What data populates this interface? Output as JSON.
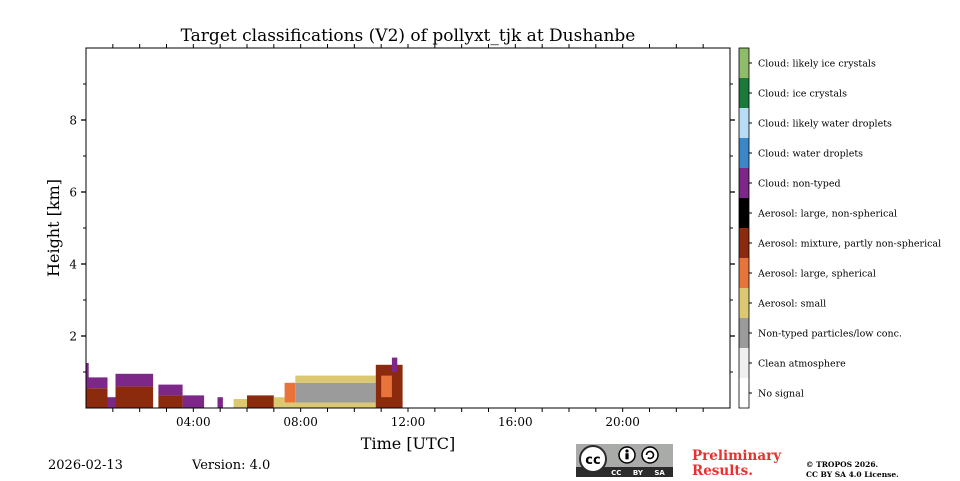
{
  "chart_data": {
    "type": "heatmap",
    "title": "Target classifications (V2) of pollyxt_tjk at Dushanbe",
    "xlabel": "Time [UTC]",
    "ylabel": "Height [km]",
    "xlim_hours": [
      0,
      24
    ],
    "ylim_km": [
      0,
      10
    ],
    "x_ticks": [
      {
        "hour": 4,
        "label": "04:00"
      },
      {
        "hour": 8,
        "label": "08:00"
      },
      {
        "hour": 12,
        "label": "12:00"
      },
      {
        "hour": 16,
        "label": "16:00"
      },
      {
        "hour": 20,
        "label": "20:00"
      }
    ],
    "y_ticks": [
      {
        "km": 2,
        "label": "2"
      },
      {
        "km": 4,
        "label": "4"
      },
      {
        "km": 6,
        "label": "6"
      },
      {
        "km": 8,
        "label": "8"
      }
    ],
    "legend": [
      {
        "label": "Cloud: likely ice crystals",
        "color": "#8fbc6a"
      },
      {
        "label": "Cloud: ice crystals",
        "color": "#1a7a3a"
      },
      {
        "label": "Cloud: likely water droplets",
        "color": "#b7dcf5"
      },
      {
        "label": "Cloud: water droplets",
        "color": "#3a88c8"
      },
      {
        "label": "Cloud: non-typed",
        "color": "#7d2788"
      },
      {
        "label": "Aerosol: large, non-spherical",
        "color": "#000000"
      },
      {
        "label": "Aerosol: mixture, partly non-spherical",
        "color": "#8b2a0c"
      },
      {
        "label": "Aerosol: large, spherical",
        "color": "#e8743b"
      },
      {
        "label": "Aerosol: small",
        "color": "#dcc870"
      },
      {
        "label": "Non-typed particles/low conc.",
        "color": "#9b9b9b"
      },
      {
        "label": "Clean atmosphere",
        "color": "#f0f0f0"
      },
      {
        "label": "No signal",
        "color": "#ffffff"
      }
    ],
    "segments": [
      {
        "t0": 0.0,
        "t1": 0.1,
        "base_km": 0.0,
        "top_km": 1.25,
        "class": "Cloud: non-typed"
      },
      {
        "t0": 0.0,
        "t1": 0.8,
        "base_km": 0.0,
        "top_km": 0.55,
        "class": "Aerosol: mixture, partly non-spherical"
      },
      {
        "t0": 0.0,
        "t1": 0.8,
        "base_km": 0.55,
        "top_km": 0.85,
        "class": "Cloud: non-typed"
      },
      {
        "t0": 0.8,
        "t1": 1.1,
        "base_km": 0.0,
        "top_km": 0.3,
        "class": "Cloud: non-typed"
      },
      {
        "t0": 1.1,
        "t1": 2.5,
        "base_km": 0.0,
        "top_km": 0.6,
        "class": "Aerosol: mixture, partly non-spherical"
      },
      {
        "t0": 1.1,
        "t1": 2.5,
        "base_km": 0.6,
        "top_km": 0.95,
        "class": "Cloud: non-typed"
      },
      {
        "t0": 2.7,
        "t1": 3.6,
        "base_km": 0.0,
        "top_km": 0.35,
        "class": "Aerosol: mixture, partly non-spherical"
      },
      {
        "t0": 2.7,
        "t1": 3.6,
        "base_km": 0.35,
        "top_km": 0.65,
        "class": "Cloud: non-typed"
      },
      {
        "t0": 3.6,
        "t1": 4.4,
        "base_km": 0.0,
        "top_km": 0.35,
        "class": "Cloud: non-typed"
      },
      {
        "t0": 4.9,
        "t1": 5.1,
        "base_km": 0.0,
        "top_km": 0.3,
        "class": "Cloud: non-typed"
      },
      {
        "t0": 5.5,
        "t1": 6.0,
        "base_km": 0.0,
        "top_km": 0.25,
        "class": "Aerosol: small"
      },
      {
        "t0": 6.0,
        "t1": 7.0,
        "base_km": 0.0,
        "top_km": 0.35,
        "class": "Aerosol: mixture, partly non-spherical"
      },
      {
        "t0": 7.0,
        "t1": 7.4,
        "base_km": 0.0,
        "top_km": 0.3,
        "class": "Aerosol: small"
      },
      {
        "t0": 7.4,
        "t1": 7.8,
        "base_km": 0.15,
        "top_km": 0.7,
        "class": "Aerosol: large, spherical"
      },
      {
        "t0": 7.4,
        "t1": 11.0,
        "base_km": 0.0,
        "top_km": 0.15,
        "class": "Aerosol: small"
      },
      {
        "t0": 7.8,
        "t1": 10.8,
        "base_km": 0.15,
        "top_km": 0.7,
        "class": "Non-typed particles/low conc."
      },
      {
        "t0": 7.8,
        "t1": 10.8,
        "base_km": 0.7,
        "top_km": 0.9,
        "class": "Aerosol: small"
      },
      {
        "t0": 10.8,
        "t1": 11.8,
        "base_km": 0.0,
        "top_km": 1.2,
        "class": "Aerosol: mixture, partly non-spherical"
      },
      {
        "t0": 11.0,
        "t1": 11.4,
        "base_km": 0.3,
        "top_km": 0.9,
        "class": "Aerosol: large, spherical"
      },
      {
        "t0": 11.4,
        "t1": 11.6,
        "base_km": 1.0,
        "top_km": 1.4,
        "class": "Cloud: non-typed"
      }
    ]
  },
  "footer": {
    "date": "2026-02-13",
    "version": "Version: 4.0",
    "license_badge": "CC BY SA",
    "preliminary": "Preliminary Results.",
    "copyright_line1": "© TROPOS 2026.",
    "copyright_line2": "CC BY SA 4.0 License."
  }
}
